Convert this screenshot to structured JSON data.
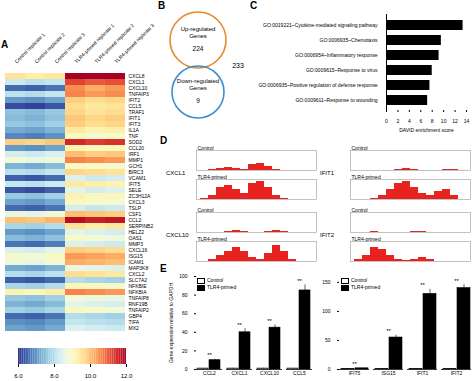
{
  "chart_data": [
    {
      "panel": "A",
      "type": "heatmap",
      "columns": [
        "Control replicate 1",
        "Control replicate 2",
        "Control replicate 3",
        "TLR4-primed replicate 1",
        "TLR4-primed replicate 2",
        "TLR4-primed replicate 3"
      ],
      "rows": [
        {
          "gene": "CXCL8",
          "values": [
            9.5,
            9.3,
            9.4,
            12.2,
            12.0,
            12.1
          ]
        },
        {
          "gene": "CXCL1",
          "values": [
            8.2,
            8.0,
            8.1,
            11.2,
            11.0,
            11.1
          ]
        },
        {
          "gene": "CXCL10",
          "values": [
            6.5,
            6.4,
            6.6,
            10.5,
            10.2,
            10.4
          ]
        },
        {
          "gene": "TNFAIP3",
          "values": [
            8.0,
            7.9,
            8.1,
            10.6,
            10.4,
            10.5
          ]
        },
        {
          "gene": "IFIT2",
          "values": [
            7.0,
            6.9,
            7.1,
            9.8,
            9.6,
            9.7
          ]
        },
        {
          "gene": "CCL5",
          "values": [
            6.2,
            6.1,
            6.3,
            9.6,
            9.4,
            9.5
          ]
        },
        {
          "gene": "TRAF1",
          "values": [
            7.5,
            7.4,
            7.6,
            9.7,
            9.5,
            9.6
          ]
        },
        {
          "gene": "IFIT1",
          "values": [
            7.4,
            7.3,
            7.5,
            9.9,
            9.7,
            9.8
          ]
        },
        {
          "gene": "IFIT3",
          "values": [
            7.6,
            7.5,
            7.7,
            9.8,
            9.6,
            9.7
          ]
        },
        {
          "gene": "IL1A",
          "values": [
            7.2,
            7.1,
            7.3,
            9.4,
            9.2,
            9.3
          ]
        },
        {
          "gene": "TNF",
          "values": [
            6.8,
            6.7,
            6.9,
            9.0,
            8.8,
            8.9
          ]
        },
        {
          "gene": "SOD2",
          "values": [
            9.8,
            9.7,
            9.9,
            11.5,
            11.3,
            11.4
          ]
        },
        {
          "gene": "CCL20",
          "values": [
            7.0,
            6.9,
            7.1,
            9.2,
            9.0,
            9.1
          ]
        },
        {
          "gene": "IRF1",
          "values": [
            8.3,
            8.2,
            8.4,
            10.0,
            9.8,
            9.9
          ]
        },
        {
          "gene": "MMP1",
          "values": [
            8.8,
            8.6,
            8.7,
            10.6,
            10.5,
            10.4
          ]
        },
        {
          "gene": "GCH1",
          "values": [
            7.3,
            7.2,
            7.4,
            9.0,
            8.9,
            8.8
          ]
        },
        {
          "gene": "BIRC3",
          "values": [
            8.0,
            7.9,
            8.1,
            9.7,
            9.6,
            9.5
          ]
        },
        {
          "gene": "VCAM1",
          "values": [
            6.4,
            6.3,
            6.5,
            8.4,
            8.2,
            8.3
          ]
        },
        {
          "gene": "IFIT5",
          "values": [
            8.1,
            8.0,
            8.2,
            9.4,
            9.3,
            9.2
          ]
        },
        {
          "gene": "SELE",
          "values": [
            6.3,
            6.2,
            6.4,
            8.5,
            8.3,
            8.4
          ]
        },
        {
          "gene": "ZC3H12A",
          "values": [
            7.6,
            7.5,
            7.7,
            9.2,
            9.0,
            9.1
          ]
        },
        {
          "gene": "CXCL3",
          "values": [
            7.1,
            7.0,
            7.2,
            9.0,
            8.9,
            8.8
          ]
        },
        {
          "gene": "TSLP",
          "values": [
            6.5,
            6.4,
            6.6,
            8.3,
            8.1,
            8.2
          ]
        },
        {
          "gene": "CSF1",
          "values": [
            8.6,
            8.5,
            8.7,
            10.0,
            9.9,
            9.8
          ]
        },
        {
          "gene": "CCL2",
          "values": [
            10.0,
            9.9,
            10.1,
            11.8,
            11.6,
            11.7
          ]
        },
        {
          "gene": "SERPINB2",
          "values": [
            7.8,
            7.7,
            7.9,
            9.5,
            9.3,
            9.4
          ]
        },
        {
          "gene": "HELZ2",
          "values": [
            7.0,
            6.9,
            7.1,
            8.5,
            8.4,
            8.3
          ]
        },
        {
          "gene": "OAS1",
          "values": [
            7.4,
            7.3,
            7.5,
            8.9,
            8.8,
            8.7
          ]
        },
        {
          "gene": "MMP3",
          "values": [
            6.6,
            6.5,
            6.7,
            8.4,
            8.3,
            8.2
          ]
        },
        {
          "gene": "CXCL16",
          "values": [
            8.4,
            8.3,
            8.5,
            9.8,
            9.7,
            9.6
          ]
        },
        {
          "gene": "ISG15",
          "values": [
            8.9,
            8.8,
            9.0,
            10.4,
            10.3,
            10.2
          ]
        },
        {
          "gene": "ICAM1",
          "values": [
            8.7,
            8.6,
            8.8,
            10.2,
            10.1,
            10.0
          ]
        },
        {
          "gene": "MAP3K8",
          "values": [
            7.2,
            7.1,
            7.3,
            8.6,
            8.5,
            8.4
          ]
        },
        {
          "gene": "CXCL2",
          "values": [
            7.9,
            7.8,
            8.0,
            9.6,
            9.5,
            9.4
          ]
        },
        {
          "gene": "SLC7A2",
          "values": [
            6.4,
            6.3,
            6.5,
            7.9,
            7.8,
            7.7
          ]
        },
        {
          "gene": "NFKBIE",
          "values": [
            7.8,
            7.7,
            7.9,
            9.1,
            9.0,
            8.9
          ]
        },
        {
          "gene": "NFKBIA",
          "values": [
            9.2,
            9.1,
            9.3,
            10.6,
            10.5,
            10.4
          ]
        },
        {
          "gene": "TNFAIP8",
          "values": [
            7.6,
            7.5,
            7.7,
            8.8,
            8.7,
            8.6
          ]
        },
        {
          "gene": "RNF19B",
          "values": [
            7.3,
            7.2,
            7.4,
            8.5,
            8.4,
            8.3
          ]
        },
        {
          "gene": "TNFAIP2",
          "values": [
            7.7,
            7.6,
            7.8,
            9.0,
            8.9,
            8.8
          ]
        },
        {
          "gene": "GBP4",
          "values": [
            6.5,
            6.4,
            6.6,
            7.9,
            7.8,
            7.7
          ]
        },
        {
          "gene": "TIFA",
          "values": [
            6.9,
            6.8,
            7.0,
            8.1,
            8.0,
            7.9
          ]
        },
        {
          "gene": "MX2",
          "values": [
            7.1,
            7.0,
            7.2,
            8.4,
            8.3,
            8.2
          ]
        }
      ],
      "color_range": [
        6,
        12
      ],
      "color_ticks": [
        6,
        8,
        10,
        12
      ]
    },
    {
      "panel": "B",
      "type": "venn",
      "sets": [
        {
          "label": "Up-regulated Genes",
          "count": 224,
          "color": "#e8892b"
        },
        {
          "label": "Down-regulated Genes",
          "count": 9,
          "color": "#3b8fd0"
        }
      ],
      "total": 233
    },
    {
      "panel": "C",
      "type": "bar",
      "orientation": "horizontal",
      "categories": [
        "GO:0019221~Cytokine-mediated signaling pathway",
        "GO:0006935~Chemotaxis",
        "GO:0006954~Inflammatory response",
        "GO:0009615~Response to virus",
        "GO:0006935~Positive regulation of defense response",
        "GO:0009611~Response to wounding"
      ],
      "values": [
        13.4,
        9.6,
        9.2,
        8.0,
        7.6,
        7.2
      ],
      "color": "#000000",
      "xlabel": "DAVID enrichment score",
      "xlim": [
        0,
        14
      ],
      "xticks": [
        0,
        2,
        4,
        6,
        8,
        10,
        12,
        14
      ]
    },
    {
      "panel": "D",
      "type": "coverage",
      "tick_labels": false,
      "ylim": [
        0,
        1
      ],
      "color": "#e8231f",
      "genes": [
        {
          "name": "CXCL1",
          "tracks": [
            {
              "name": "Control",
              "values": [
                0,
                0,
                0.05,
                0.1,
                0.15,
                0.1,
                0.05,
                0.3,
                0.35,
                0.2,
                0.05,
                0,
                0,
                0,
                0,
                0
              ]
            },
            {
              "name": "TLR4-primed",
              "values": [
                0,
                0.05,
                0.2,
                0.6,
                0.7,
                0.5,
                0.3,
                0.8,
                0.9,
                0.6,
                0.2,
                0.05,
                0,
                0,
                0,
                0
              ]
            }
          ]
        },
        {
          "name": "CXCL10",
          "tracks": [
            {
              "name": "Control",
              "values": [
                0,
                0,
                0,
                0,
                0.05,
                0.1,
                0.05,
                0,
                0,
                0.05,
                0.1,
                0.05,
                0,
                0,
                0,
                0
              ]
            },
            {
              "name": "TLR4-primed",
              "values": [
                0,
                0,
                0.1,
                0.3,
                0.5,
                0.7,
                0.5,
                0.2,
                0.1,
                0.4,
                0.8,
                0.5,
                0.1,
                0,
                0,
                0
              ]
            }
          ]
        },
        {
          "name": "IFIT1",
          "tracks": [
            {
              "name": "Control",
              "values": [
                0,
                0,
                0,
                0,
                0,
                0,
                0.05,
                0.1,
                0.05,
                0,
                0,
                0,
                0.05,
                0.05,
                0,
                0
              ]
            },
            {
              "name": "TLR4-primed",
              "values": [
                0,
                0,
                0,
                0.05,
                0.2,
                0.5,
                0.8,
                0.9,
                0.6,
                0.3,
                0.2,
                0.4,
                0.5,
                0.2,
                0,
                0
              ]
            }
          ]
        },
        {
          "name": "IFIT2",
          "tracks": [
            {
              "name": "Control",
              "values": [
                0,
                0,
                0,
                0.05,
                0,
                0,
                0,
                0,
                0.05,
                0.05,
                0,
                0,
                0,
                0,
                0,
                0
              ]
            },
            {
              "name": "TLR4-primed",
              "values": [
                0,
                0.1,
                0.3,
                0.7,
                0.6,
                0.3,
                0.1,
                0.05,
                0.1,
                0.2,
                0.1,
                0,
                0,
                0,
                0,
                0
              ]
            }
          ]
        }
      ]
    },
    {
      "panel": "E",
      "type": "bar",
      "legend": "top-left",
      "categories": [
        "CCL2",
        "CXCL1",
        "CXCL10",
        "CCL5"
      ],
      "series": [
        {
          "name": "Control",
          "color": "#ffffff",
          "values": [
            1,
            1,
            1,
            1
          ],
          "errors": [
            0.3,
            0.3,
            0.3,
            0.3
          ]
        },
        {
          "name": "TLR4-primed",
          "color": "#000000",
          "values": [
            10,
            40,
            45,
            85
          ],
          "errors": [
            1,
            4,
            3,
            6
          ]
        }
      ],
      "annotations": [
        "**",
        "**",
        "**",
        "**"
      ],
      "ylabel": "Gene expression relative to GAPDH",
      "ylim": [
        0,
        100
      ],
      "yticks": [
        0,
        20,
        40,
        60,
        80,
        100
      ]
    },
    {
      "type": "bar",
      "legend": "top-left",
      "categories": [
        "IFIT5",
        "ISG15",
        "IFIT1",
        "IFIT2"
      ],
      "series": [
        {
          "name": "Control",
          "color": "#ffffff",
          "values": [
            1,
            1,
            1,
            1
          ],
          "errors": [
            0.1,
            0.1,
            0.1,
            0.1
          ]
        },
        {
          "name": "TLR4-primed",
          "color": "#000000",
          "values": [
            2,
            55,
            130,
            140
          ],
          "errors": [
            0.2,
            4,
            8,
            6
          ]
        }
      ],
      "annotations": [
        "**",
        "**",
        "**",
        "**"
      ],
      "ylim": [
        0,
        160
      ],
      "yticks": [
        0,
        50,
        100,
        150
      ]
    }
  ]
}
